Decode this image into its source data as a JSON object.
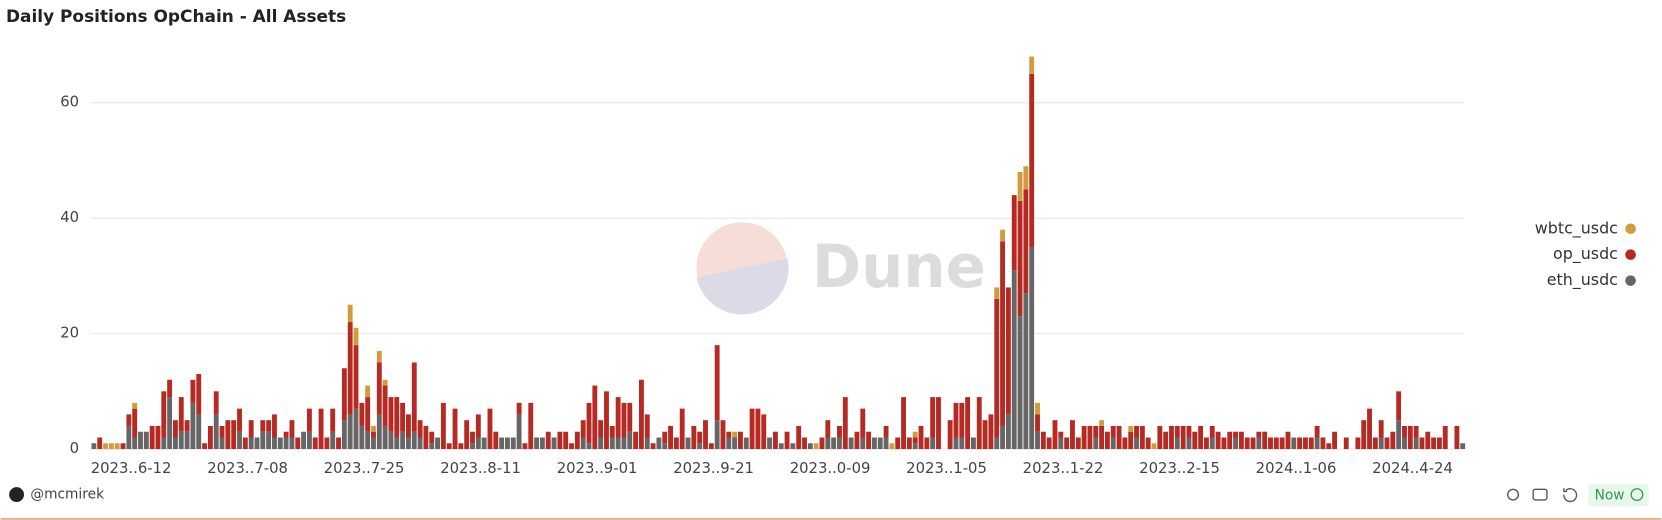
{
  "header": {
    "title": "Daily Positions OpChain - All Assets"
  },
  "chart_data": {
    "type": "bar",
    "stacked": true,
    "grid": true,
    "legend": "right",
    "watermark": "Dune",
    "ylim": [
      0,
      70
    ],
    "yticks": [
      0,
      20,
      40,
      60
    ],
    "categories": [
      "2023..6-12",
      null,
      null,
      null,
      null,
      null,
      null,
      null,
      null,
      null,
      null,
      null,
      null,
      null,
      null,
      null,
      null,
      null,
      null,
      null,
      "2023..7-08",
      null,
      null,
      null,
      null,
      null,
      null,
      null,
      null,
      null,
      null,
      null,
      null,
      null,
      null,
      null,
      null,
      null,
      null,
      null,
      "2023..7-25",
      null,
      null,
      null,
      null,
      null,
      null,
      null,
      null,
      null,
      null,
      null,
      null,
      null,
      null,
      null,
      null,
      null,
      null,
      null,
      "2023..8-11",
      null,
      null,
      null,
      null,
      null,
      null,
      null,
      null,
      null,
      null,
      null,
      null,
      null,
      null,
      null,
      null,
      null,
      null,
      null,
      "2023..9-01",
      null,
      null,
      null,
      null,
      null,
      null,
      null,
      null,
      null,
      null,
      null,
      null,
      null,
      null,
      null,
      null,
      null,
      null,
      null,
      "2023..9-21",
      null,
      null,
      null,
      null,
      null,
      null,
      null,
      null,
      null,
      null,
      null,
      null,
      null,
      null,
      null,
      null,
      null,
      null,
      null,
      "2023..0-09",
      null,
      null,
      null,
      null,
      null,
      null,
      null,
      null,
      null,
      null,
      null,
      null,
      null,
      null,
      null,
      null,
      null,
      null,
      null,
      "2023..1-05",
      null,
      null,
      null,
      null,
      null,
      null,
      null,
      null,
      null,
      null,
      null,
      null,
      null,
      null,
      null,
      null,
      null,
      null,
      null,
      "2023..1-22",
      null,
      null,
      null,
      null,
      null,
      null,
      null,
      null,
      null,
      null,
      null,
      null,
      null,
      null,
      null,
      null,
      null,
      null,
      null,
      "2023..2-15",
      null,
      null,
      null,
      null,
      null,
      null,
      null,
      null,
      null,
      null,
      null,
      null,
      null,
      null,
      null,
      null,
      null,
      null,
      null,
      "2024..1-06",
      null,
      null,
      null,
      null,
      null,
      null,
      null,
      null,
      null,
      null,
      null,
      null,
      null,
      null,
      null,
      null,
      null,
      null,
      null,
      "2024..4-24",
      null,
      null,
      null,
      null,
      null,
      null,
      null,
      null,
      null,
      null,
      null,
      null,
      null,
      null,
      null
    ],
    "series": [
      {
        "name": "eth_usdc",
        "color": "#666666",
        "values": [
          1,
          0,
          0,
          0,
          0,
          0,
          4,
          2,
          3,
          3,
          0,
          0,
          2,
          9,
          2,
          3,
          3,
          8,
          6,
          0,
          0,
          6,
          2,
          0,
          0,
          3,
          0,
          2,
          2,
          3,
          3,
          2,
          2,
          2,
          2,
          0,
          3,
          3,
          0,
          0,
          0,
          3,
          0,
          5,
          6,
          7,
          4,
          3,
          2,
          6,
          4,
          3,
          2,
          3,
          2,
          3,
          2,
          0,
          1,
          2,
          0,
          0,
          0,
          0,
          0,
          1,
          2,
          2,
          0,
          0,
          2,
          2,
          2,
          6,
          0,
          0,
          2,
          2,
          0,
          2,
          0,
          0,
          0,
          0,
          2,
          1,
          0,
          2,
          0,
          2,
          2,
          2,
          3,
          0,
          0,
          2,
          0,
          2,
          1,
          0,
          0,
          0,
          2,
          0,
          1,
          0,
          0,
          5,
          0,
          2,
          2,
          0,
          2,
          0,
          0,
          0,
          2,
          0,
          1,
          0,
          1,
          0,
          0,
          1,
          0,
          0,
          2,
          2,
          2,
          0,
          2,
          0,
          2,
          0,
          2,
          2,
          2,
          0,
          0,
          0,
          0,
          1,
          0,
          0,
          2,
          0,
          0,
          0,
          2,
          2,
          0,
          2,
          0,
          0,
          0,
          2,
          4,
          6,
          31,
          23,
          27,
          35,
          3,
          0,
          0,
          0,
          2,
          0,
          0,
          0,
          0,
          0,
          2,
          0,
          0,
          2,
          0,
          0,
          0,
          2,
          0,
          0,
          0,
          0,
          0,
          0,
          2,
          0,
          2,
          0,
          0,
          0,
          2,
          0,
          0,
          0,
          2,
          0,
          0,
          0,
          2,
          0,
          0,
          0,
          0,
          0,
          2,
          0,
          0,
          0,
          2,
          0,
          0,
          0,
          0,
          0,
          0,
          0,
          0,
          0,
          0,
          2,
          0,
          0,
          5,
          2,
          0,
          2,
          0,
          0,
          0,
          0,
          0,
          0,
          0,
          1
        ]
      },
      {
        "name": "op_usdc",
        "color": "#b52a22",
        "values": [
          0,
          2,
          0,
          0,
          0,
          1,
          2,
          5,
          0,
          0,
          4,
          4,
          8,
          3,
          3,
          6,
          2,
          4,
          7,
          1,
          4,
          4,
          2,
          5,
          5,
          4,
          2,
          3,
          0,
          2,
          2,
          4,
          0,
          1,
          3,
          2,
          0,
          4,
          2,
          7,
          2,
          4,
          2,
          9,
          16,
          11,
          4,
          6,
          1,
          9,
          7,
          6,
          7,
          5,
          4,
          12,
          3,
          4,
          2,
          0,
          8,
          1,
          7,
          1,
          5,
          2,
          4,
          0,
          7,
          3,
          0,
          0,
          0,
          2,
          1,
          8,
          0,
          0,
          3,
          0,
          3,
          3,
          1,
          3,
          3,
          7,
          11,
          3,
          10,
          2,
          7,
          6,
          5,
          3,
          12,
          4,
          1,
          0,
          2,
          4,
          2,
          7,
          0,
          4,
          2,
          5,
          1,
          13,
          5,
          1,
          0,
          3,
          0,
          7,
          7,
          6,
          0,
          3,
          0,
          3,
          0,
          4,
          2,
          0,
          0,
          2,
          3,
          0,
          2,
          9,
          0,
          3,
          5,
          3,
          0,
          0,
          2,
          0,
          2,
          9,
          2,
          1,
          4,
          2,
          7,
          9,
          0,
          5,
          6,
          6,
          9,
          0,
          9,
          5,
          6,
          24,
          32,
          22,
          13,
          20,
          18,
          30,
          3,
          3,
          2,
          5,
          1,
          2,
          5,
          2,
          4,
          4,
          2,
          4,
          3,
          2,
          4,
          2,
          3,
          2,
          4,
          2,
          0,
          4,
          3,
          4,
          2,
          4,
          2,
          3,
          4,
          2,
          2,
          3,
          2,
          3,
          1,
          3,
          2,
          2,
          1,
          3,
          2,
          2,
          2,
          3,
          0,
          2,
          2,
          2,
          2,
          2,
          1,
          3,
          0,
          2,
          0,
          2,
          5,
          7,
          2,
          3,
          2,
          3,
          5,
          2,
          4,
          2,
          2,
          3,
          2,
          2,
          4,
          0,
          4,
          0
        ]
      },
      {
        "name": "wbtc_usdc",
        "color": "#d19c3c",
        "values": [
          0,
          0,
          1,
          1,
          1,
          0,
          0,
          1,
          0,
          0,
          0,
          0,
          0,
          0,
          0,
          0,
          0,
          0,
          0,
          0,
          0,
          0,
          0,
          0,
          0,
          0,
          0,
          0,
          0,
          0,
          0,
          0,
          0,
          0,
          0,
          0,
          0,
          0,
          0,
          0,
          0,
          0,
          0,
          0,
          3,
          3,
          0,
          2,
          1,
          2,
          1,
          0,
          0,
          0,
          0,
          0,
          0,
          0,
          0,
          0,
          0,
          0,
          0,
          0,
          0,
          0,
          0,
          0,
          0,
          0,
          0,
          0,
          0,
          0,
          0,
          0,
          0,
          0,
          0,
          0,
          0,
          0,
          0,
          0,
          0,
          0,
          0,
          0,
          0,
          0,
          0,
          0,
          0,
          0,
          0,
          0,
          0,
          0,
          0,
          0,
          0,
          0,
          0,
          0,
          0,
          0,
          0,
          0,
          0,
          0,
          1,
          0,
          0,
          0,
          0,
          0,
          0,
          0,
          0,
          0,
          0,
          0,
          0,
          0,
          1,
          0,
          0,
          0,
          0,
          0,
          0,
          0,
          0,
          0,
          0,
          0,
          0,
          1,
          0,
          0,
          0,
          1,
          0,
          0,
          0,
          0,
          0,
          0,
          0,
          0,
          0,
          0,
          0,
          0,
          0,
          2,
          2,
          0,
          0,
          5,
          4,
          3,
          2,
          0,
          0,
          0,
          0,
          0,
          0,
          0,
          0,
          0,
          0,
          1,
          0,
          0,
          0,
          0,
          1,
          0,
          0,
          0,
          1,
          0,
          0,
          0,
          0,
          0,
          0,
          0,
          0,
          0,
          0,
          0,
          0,
          0,
          0,
          0,
          0,
          0,
          0,
          0,
          0,
          0,
          0,
          0,
          0,
          0,
          0,
          0,
          0,
          0,
          0,
          0,
          0,
          0,
          0,
          0,
          0,
          0,
          0,
          0,
          0,
          0,
          0,
          0,
          0,
          0,
          0,
          0,
          0,
          0,
          0,
          0,
          0,
          0
        ]
      }
    ]
  },
  "footer": {
    "author": "@mcmirek",
    "status": "Now"
  }
}
